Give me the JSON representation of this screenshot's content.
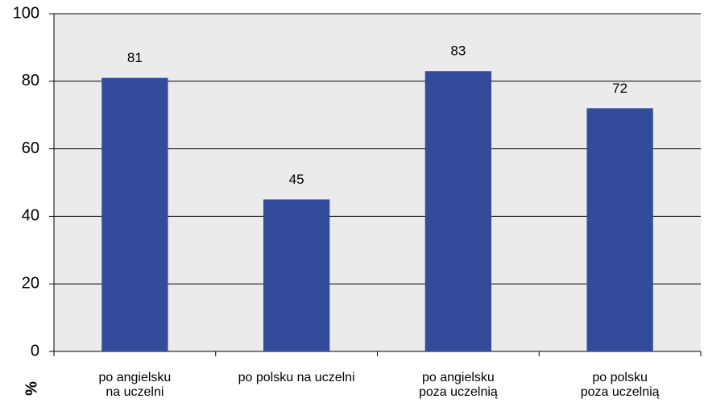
{
  "chart_data": {
    "type": "bar",
    "y_label": "%",
    "categories": [
      [
        "po angielsku",
        "na uczelni"
      ],
      [
        "po polsku na uczelni"
      ],
      [
        "po angielsku",
        "poza uczelnią"
      ],
      [
        "po polsku",
        "poza uczelnią"
      ]
    ],
    "values": [
      81,
      45,
      83,
      72
    ],
    "color": "#334b9b",
    "ylim": [
      0,
      100
    ],
    "yticks": [
      0,
      20,
      40,
      60,
      80,
      100
    ],
    "grid": true
  }
}
